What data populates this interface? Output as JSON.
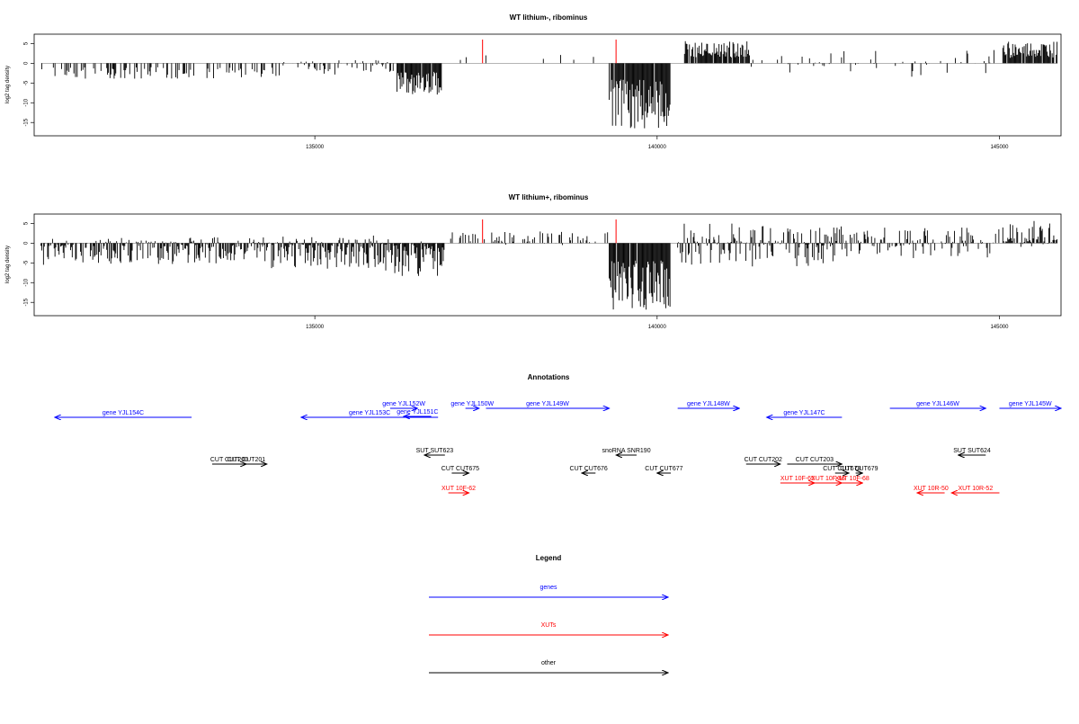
{
  "colors": {
    "gene": "#0000ff",
    "xut": "#ff0000",
    "other": "#000000",
    "spike": "#ff0000",
    "bar": "#000000"
  },
  "chart_data": [
    {
      "type": "bar",
      "title": "WT lithium-, ribominus",
      "ylabel": "log2 tag density",
      "xlim": [
        130900,
        145900
      ],
      "ylim": [
        -17,
        6
      ],
      "x_ticks": [
        135000,
        140000,
        145000
      ],
      "y_ticks": [
        5,
        0,
        -5,
        -10,
        -15
      ],
      "x_tick_labels": [
        "135000",
        "140000",
        "145000"
      ],
      "y_tick_labels": [
        "5",
        "0",
        "-5",
        "-10",
        "-15"
      ],
      "spikes": [
        {
          "x": 137450,
          "value": 6
        },
        {
          "x": 139400,
          "value": 6
        }
      ],
      "segments": [
        {
          "start": 131000,
          "end": 134500,
          "min": -4.0,
          "max": 0,
          "density": 0.3,
          "seed": 11
        },
        {
          "start": 134500,
          "end": 136200,
          "min": -3.0,
          "max": 0.8,
          "density": 0.25,
          "seed": 12
        },
        {
          "start": 136200,
          "end": 136850,
          "min": -8.0,
          "max": 0,
          "density": 0.9,
          "seed": 13
        },
        {
          "start": 136850,
          "end": 139300,
          "min": 0,
          "max": 2.5,
          "density": 0.04,
          "seed": 14
        },
        {
          "start": 139300,
          "end": 140200,
          "min": -16.5,
          "max": 0,
          "density": 0.95,
          "seed": 15
        },
        {
          "start": 140400,
          "end": 141350,
          "min": 0,
          "max": 5.8,
          "density": 0.9,
          "seed": 16
        },
        {
          "start": 141350,
          "end": 143000,
          "min": -2.5,
          "max": 3.5,
          "density": 0.15,
          "seed": 17
        },
        {
          "start": 143000,
          "end": 145000,
          "min": -3.5,
          "max": 3.5,
          "density": 0.18,
          "seed": 18
        },
        {
          "start": 145050,
          "end": 145850,
          "min": 0,
          "max": 5.5,
          "density": 0.9,
          "seed": 19
        }
      ]
    },
    {
      "type": "bar",
      "title": "WT lithium+, ribominus",
      "ylabel": "log2 tag density",
      "xlim": [
        130900,
        145900
      ],
      "ylim": [
        -17,
        6
      ],
      "x_ticks": [
        135000,
        140000,
        145000
      ],
      "y_ticks": [
        5,
        0,
        -5,
        -10,
        -15
      ],
      "x_tick_labels": [
        "135000",
        "140000",
        "145000"
      ],
      "y_tick_labels": [
        "5",
        "0",
        "-5",
        "-10",
        "-15"
      ],
      "spikes": [
        {
          "x": 137450,
          "value": 6
        },
        {
          "x": 139400,
          "value": 6
        }
      ],
      "segments": [
        {
          "start": 131000,
          "end": 134200,
          "min": -5.5,
          "max": 1.5,
          "density": 0.8,
          "seed": 21
        },
        {
          "start": 134200,
          "end": 136000,
          "min": -6.5,
          "max": 2.0,
          "density": 0.9,
          "seed": 22
        },
        {
          "start": 136000,
          "end": 136900,
          "min": -9.0,
          "max": 1.0,
          "density": 0.95,
          "seed": 23
        },
        {
          "start": 136900,
          "end": 139300,
          "min": -0.5,
          "max": 3.0,
          "density": 0.35,
          "seed": 24
        },
        {
          "start": 139300,
          "end": 140200,
          "min": -17.0,
          "max": 0,
          "density": 0.95,
          "seed": 25
        },
        {
          "start": 140300,
          "end": 142700,
          "min": -6.0,
          "max": 5.0,
          "density": 0.75,
          "seed": 26
        },
        {
          "start": 142700,
          "end": 145000,
          "min": -4.0,
          "max": 4.0,
          "density": 0.55,
          "seed": 27
        },
        {
          "start": 145050,
          "end": 145850,
          "min": -1.0,
          "max": 6.0,
          "density": 0.9,
          "seed": 28
        }
      ]
    }
  ],
  "annotations": {
    "title": "Annotations",
    "genes": [
      {
        "label": "gene YJL154C",
        "start": 131200,
        "end": 133200,
        "dir": "left",
        "row": 2
      },
      {
        "label": "gene YJL153C",
        "start": 134800,
        "end": 136800,
        "dir": "left",
        "row": 2
      },
      {
        "label": "gene YJL152W",
        "start": 136100,
        "end": 136500,
        "dir": "right",
        "row": 0
      },
      {
        "label": "gene YJL151C",
        "start": 136300,
        "end": 136700,
        "dir": "left",
        "row": 1
      },
      {
        "label": "gene YJL150W",
        "start": 137200,
        "end": 137400,
        "dir": "right",
        "row": 0
      },
      {
        "label": "gene YJL149W",
        "start": 137500,
        "end": 139300,
        "dir": "right",
        "row": 0
      },
      {
        "label": "gene YJL148W",
        "start": 140300,
        "end": 141200,
        "dir": "right",
        "row": 0
      },
      {
        "label": "gene YJL147C",
        "start": 141600,
        "end": 142700,
        "dir": "left",
        "row": 2
      },
      {
        "label": "gene YJL146W",
        "start": 143400,
        "end": 144800,
        "dir": "right",
        "row": 0
      },
      {
        "label": "gene YJL145W",
        "start": 145000,
        "end": 145900,
        "dir": "right",
        "row": 0
      }
    ],
    "xuts": [
      {
        "label": "XUT 10F-62",
        "start": 136950,
        "end": 137250,
        "dir": "right",
        "row": 1
      },
      {
        "label": "XUT 10F-65",
        "start": 141800,
        "end": 142300,
        "dir": "right",
        "row": 0
      },
      {
        "label": "XUT 10F-66",
        "start": 142300,
        "end": 142700,
        "dir": "right",
        "row": 0
      },
      {
        "label": "XUT 10F-68",
        "start": 142700,
        "end": 143000,
        "dir": "right",
        "row": 0
      },
      {
        "label": "XUT 10R-50",
        "start": 143800,
        "end": 144200,
        "dir": "left",
        "row": 1
      },
      {
        "label": "XUT 10R-52",
        "start": 144300,
        "end": 145000,
        "dir": "left",
        "row": 1
      }
    ],
    "others": [
      {
        "label": "snoRNA SNR190",
        "start": 139400,
        "end": 139700,
        "dir": "left",
        "row": 0
      },
      {
        "label": "SUT SUT623",
        "start": 136600,
        "end": 136900,
        "dir": "left",
        "row": 0
      },
      {
        "label": "SUT SUT624",
        "start": 144400,
        "end": 144800,
        "dir": "left",
        "row": 0
      },
      {
        "label": "CUT CUT200",
        "start": 133500,
        "end": 134000,
        "dir": "right",
        "row": 1
      },
      {
        "label": "CUT CUT201",
        "start": 133700,
        "end": 134300,
        "dir": "right",
        "row": 1
      },
      {
        "label": "CUT CUT675",
        "start": 137000,
        "end": 137250,
        "dir": "right",
        "row": 2
      },
      {
        "label": "CUT CUT676",
        "start": 138900,
        "end": 139100,
        "dir": "left",
        "row": 2
      },
      {
        "label": "CUT CUT677",
        "start": 140000,
        "end": 140200,
        "dir": "left",
        "row": 2
      },
      {
        "label": "CUT CUT202",
        "start": 141300,
        "end": 141800,
        "dir": "right",
        "row": 1
      },
      {
        "label": "CUT CUT203",
        "start": 141900,
        "end": 142700,
        "dir": "right",
        "row": 1
      },
      {
        "label": "CUT CUT678",
        "start": 142600,
        "end": 142800,
        "dir": "right",
        "row": 2
      },
      {
        "label": "CUT CUT679",
        "start": 142900,
        "end": 143000,
        "dir": "right",
        "row": 2
      }
    ]
  },
  "legend": {
    "title": "Legend",
    "items": [
      {
        "label": "genes",
        "color": "#0000ff"
      },
      {
        "label": "XUTs",
        "color": "#ff0000"
      },
      {
        "label": "other",
        "color": "#000000"
      }
    ]
  }
}
